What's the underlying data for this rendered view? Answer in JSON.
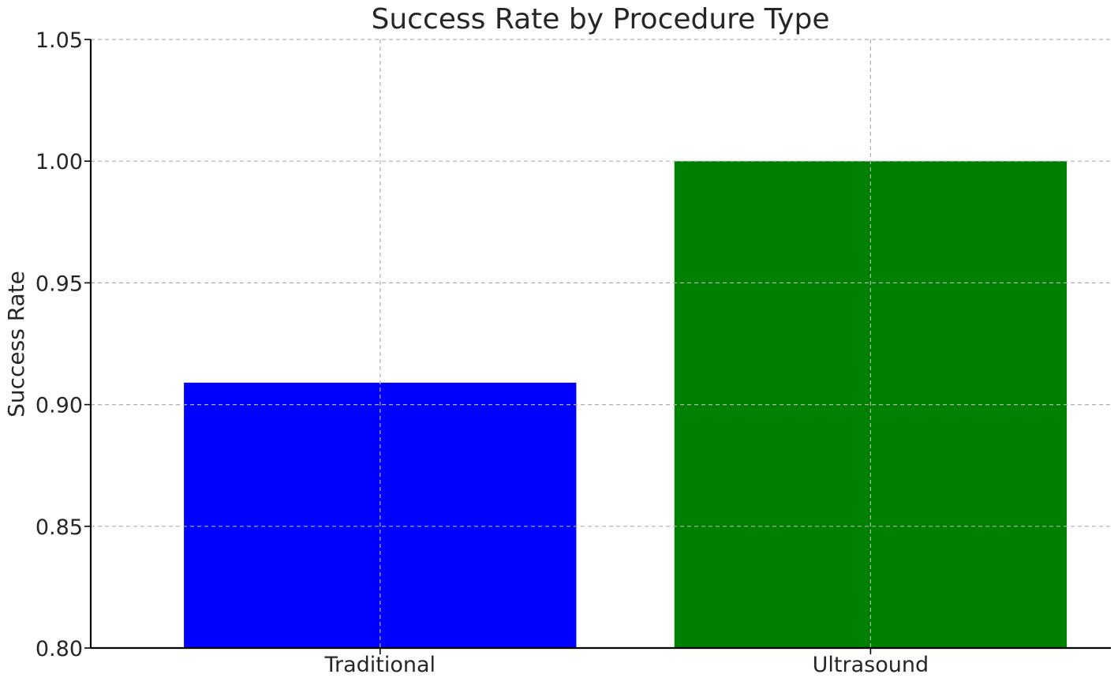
{
  "chart_data": {
    "type": "bar",
    "title": "Success Rate by Procedure Type",
    "xlabel": "",
    "ylabel": "Success Rate",
    "categories": [
      "Traditional",
      "Ultrasound"
    ],
    "values": [
      0.909,
      1.0
    ],
    "colors": [
      "#0000ff",
      "#008000"
    ],
    "ylim": [
      0.8,
      1.05
    ],
    "yticks": [
      0.8,
      0.85,
      0.9,
      0.95,
      1.0,
      1.05
    ],
    "ytick_labels": [
      "0.80",
      "0.85",
      "0.90",
      "0.95",
      "1.00",
      "1.05"
    ],
    "grid": true
  }
}
